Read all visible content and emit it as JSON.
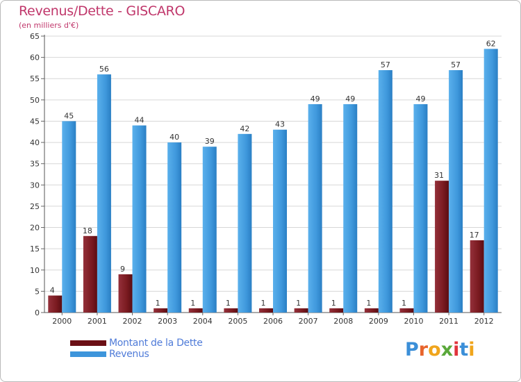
{
  "title": "Revenus/Dette - GISCARO",
  "subtitle": "(en milliers d'€)",
  "logo_text": "Proxiti",
  "colors": {
    "dette": "#7a1a1f",
    "revenus": "#3d95db",
    "title": "#c0376b",
    "legend_text": "#4f7bd8"
  },
  "chart_data": {
    "type": "bar",
    "title": "Revenus/Dette - GISCARO",
    "subtitle": "(en milliers d'€)",
    "xlabel": "",
    "ylabel": "",
    "ylim": [
      0,
      65
    ],
    "yticks": [
      0,
      5,
      10,
      15,
      20,
      25,
      30,
      35,
      40,
      45,
      50,
      55,
      60,
      65
    ],
    "grid": true,
    "legend_position": "bottom-left",
    "categories": [
      "2000",
      "2001",
      "2002",
      "2003",
      "2004",
      "2005",
      "2006",
      "2007",
      "2008",
      "2009",
      "2010",
      "2011",
      "2012"
    ],
    "series": [
      {
        "name": "Montant de la Dette",
        "values": [
          4,
          18,
          9,
          1,
          1,
          1,
          1,
          1,
          1,
          1,
          1,
          31,
          17
        ]
      },
      {
        "name": "Revenus",
        "values": [
          45,
          56,
          44,
          40,
          39,
          42,
          43,
          49,
          49,
          57,
          49,
          57,
          62
        ]
      }
    ]
  }
}
